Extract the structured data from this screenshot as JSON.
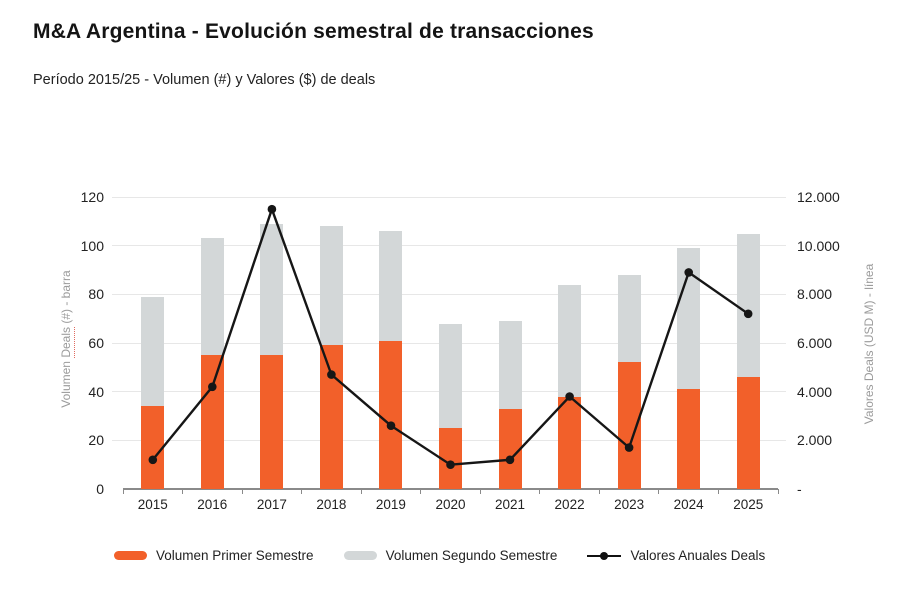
{
  "header": {
    "title": "M&A Argentina - Evolución semestral de transacciones",
    "subtitle": "Período 2015/25 - Volumen (#) y Valores ($) de deals"
  },
  "axes": {
    "left": {
      "title_parts": [
        "Volumen ",
        "Deals",
        " (#) - barra"
      ],
      "ticks": [
        "0",
        "20",
        "40",
        "60",
        "80",
        "100",
        "120"
      ]
    },
    "right": {
      "title": "Valores Deals (USD M) - línea",
      "ticks": [
        "-",
        "2.000",
        "4.000",
        "6.000",
        "8.000",
        "10.000",
        "12.000"
      ]
    }
  },
  "legend": {
    "items": [
      {
        "label": "Volumen Primer Semestre",
        "swatch": "bar-orange"
      },
      {
        "label": "Volumen Segundo Semestre",
        "swatch": "bar-gray"
      },
      {
        "label": "Valores Anuales Deals",
        "swatch": "line-dot"
      }
    ]
  },
  "colors": {
    "orange": "#F2602A",
    "gray": "#D3D7D8",
    "line": "#161616",
    "gridline": "#E7E7E7",
    "axis": "#8A8A8A"
  },
  "chart_data": {
    "type": "bar",
    "subtype": "stacked-bars-with-line",
    "title": "M&A Argentina - Evolución semestral de transacciones",
    "subtitle": "Período 2015/25 - Volumen (#) y Valores ($) de deals",
    "categories": [
      "2015",
      "2016",
      "2017",
      "2018",
      "2019",
      "2020",
      "2021",
      "2022",
      "2023",
      "2024",
      "2025"
    ],
    "series": [
      {
        "name": "Volumen Primer Semestre",
        "type": "bar",
        "stack": "volumen",
        "axis": "left",
        "values": [
          34,
          55,
          55,
          59,
          61,
          25,
          33,
          38,
          52,
          41,
          46
        ]
      },
      {
        "name": "Volumen Segundo Semestre",
        "type": "bar",
        "stack": "volumen",
        "axis": "left",
        "values": [
          45,
          48,
          54,
          49,
          45,
          43,
          36,
          46,
          36,
          58,
          59
        ]
      },
      {
        "name": "Valores Anuales Deals",
        "type": "line",
        "axis": "right",
        "values": [
          1200,
          4200,
          11500,
          4700,
          2600,
          1000,
          1200,
          3800,
          1700,
          8900,
          7200
        ]
      }
    ],
    "stacked_totals": [
      79,
      103,
      109,
      108,
      106,
      68,
      69,
      84,
      88,
      99,
      105
    ],
    "y_left": {
      "label": "Volumen Deals (#) - barra",
      "min": 0,
      "max": 120,
      "step": 20
    },
    "y_right": {
      "label": "Valores Deals (USD M) - línea",
      "min": 0,
      "max": 12000,
      "step": 2000
    },
    "grid": true,
    "legend_position": "bottom"
  }
}
